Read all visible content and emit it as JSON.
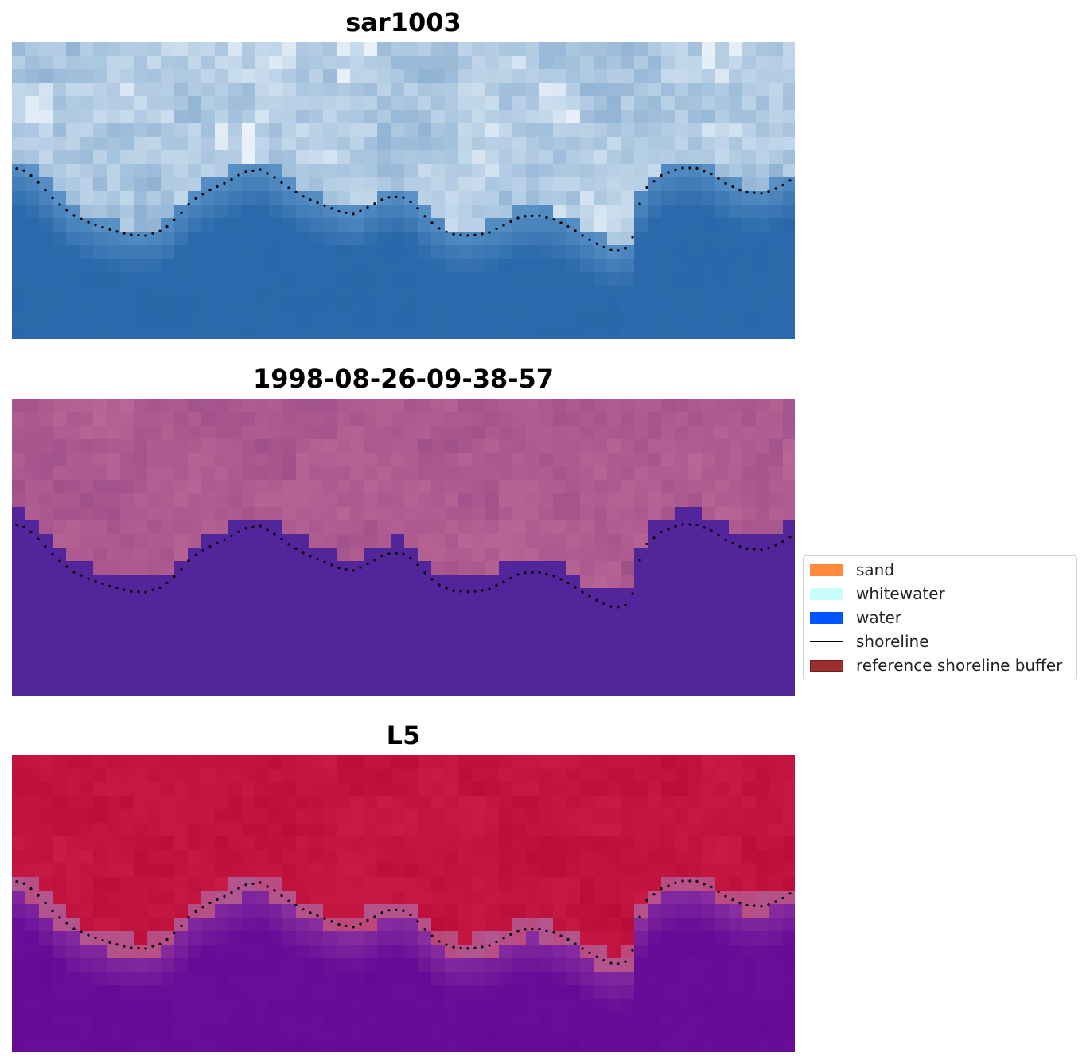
{
  "panels": [
    {
      "title": "sar1003",
      "style": "rgb"
    },
    {
      "title": "1998-08-26-09-38-57",
      "style": "classified"
    },
    {
      "title": "L5",
      "style": "index"
    }
  ],
  "legend": {
    "items": [
      {
        "label": "sand",
        "color": "#ff8a3d",
        "kind": "patch"
      },
      {
        "label": "whitewater",
        "color": "#c9fffb",
        "kind": "patch"
      },
      {
        "label": "water",
        "color": "#0055ff",
        "kind": "patch"
      },
      {
        "label": "shoreline",
        "color": "#000000",
        "kind": "line"
      },
      {
        "label": "reference shoreline buffer",
        "color": "#9c2f2f",
        "kind": "patch"
      }
    ]
  },
  "colors": {
    "shoreline_dots": "#000000",
    "land_class": "#a6578c",
    "water_class": "#53259a",
    "index_high": "#c8103c",
    "index_low": "#6a0e9e"
  }
}
